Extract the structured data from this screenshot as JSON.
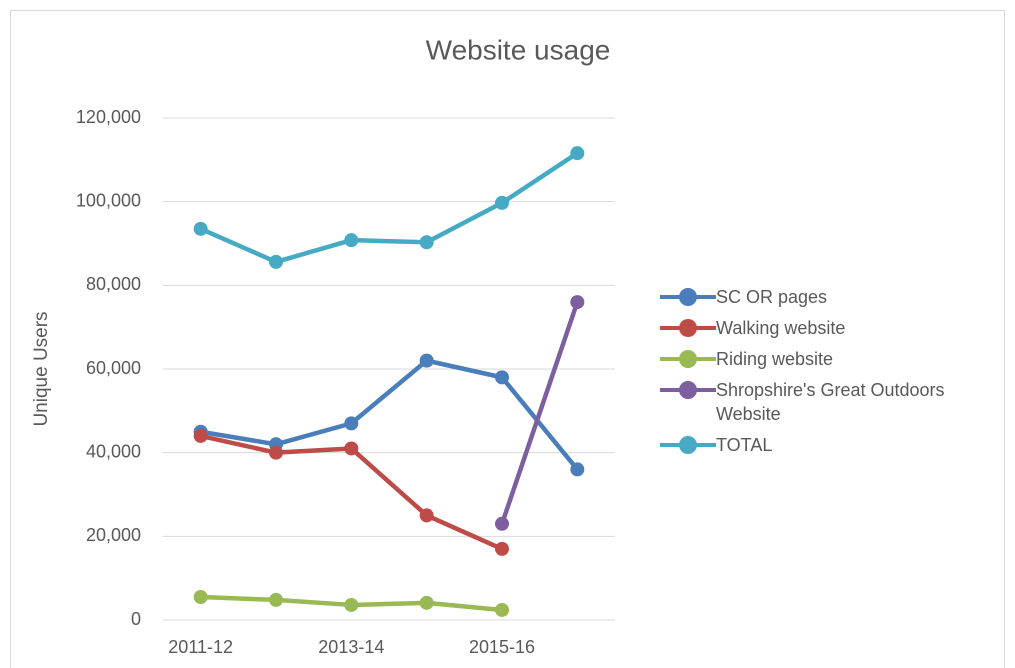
{
  "chart_data": {
    "type": "line",
    "title": "Website usage",
    "y_label": "Unique Users",
    "categories": [
      "2011-12",
      null,
      "2013-14",
      null,
      "2015-16",
      null
    ],
    "series": [
      {
        "name": "SC OR pages",
        "color": "#4a7ebb",
        "values": [
          45000,
          42000,
          47000,
          62000,
          58000,
          36000
        ]
      },
      {
        "name": "Walking website",
        "color": "#be4b48",
        "values": [
          44000,
          40000,
          41000,
          25000,
          17000,
          null
        ]
      },
      {
        "name": "Riding website",
        "color": "#98b954",
        "values": [
          5500,
          4800,
          3600,
          4100,
          2400,
          null
        ]
      },
      {
        "name": "Shropshire's Great Outdoors Website",
        "color": "#7d5fa0",
        "values": [
          null,
          null,
          null,
          null,
          23000,
          76000
        ]
      },
      {
        "name": "TOTAL",
        "color": "#46aac5",
        "values": [
          93500,
          85600,
          90800,
          90300,
          99700,
          111600
        ]
      }
    ],
    "ylim": [
      0,
      120000
    ],
    "yticks": [
      0,
      {
        "value": 20000,
        "label": "20,000"
      },
      {
        "value": 40000,
        "label": "40,000"
      },
      {
        "value": 60000,
        "label": "60,000"
      },
      {
        "value": 80000,
        "label": "80,000"
      },
      {
        "value": 100000,
        "label": "100,000"
      },
      {
        "value": 120000,
        "label": "120,000"
      }
    ],
    "grid": true,
    "legend": "right"
  }
}
